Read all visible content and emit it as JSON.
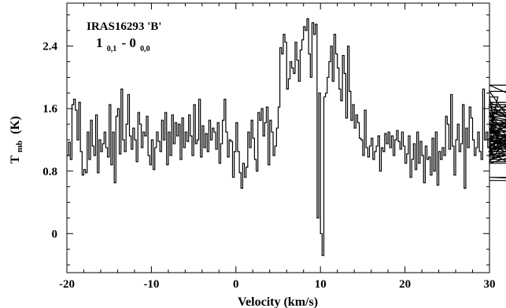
{
  "chart_data": {
    "type": "line",
    "step": true,
    "title": "",
    "annotations": {
      "source": "IRAS16293 'B'",
      "transition_upper": "1",
      "transition_upper_sub": "0,1",
      "transition_sep": "- 0",
      "transition_lower_sub": "0,0"
    },
    "xlabel": "Velocity (km/s)",
    "ylabel_main": "T",
    "ylabel_sub": "mb",
    "ylabel_unit": "(K)",
    "xlim": [
      -20,
      30
    ],
    "ylim": [
      -0.5,
      2.95
    ],
    "xticks": [
      -20,
      -10,
      0,
      10,
      20,
      30
    ],
    "xtick_labels": [
      "-20",
      "-10",
      "0",
      "10",
      "20",
      "30"
    ],
    "yticks": [
      0,
      0.8,
      1.6,
      2.4
    ],
    "ytick_labels": [
      "0",
      "0.8",
      "1.6",
      "2.4"
    ],
    "grid": false,
    "x_start": -20,
    "x_step": 0.2,
    "values": [
      1.0,
      1.17,
      0.95,
      1.65,
      1.72,
      1.58,
      1.2,
      1.68,
      1.05,
      0.75,
      0.82,
      0.78,
      1.3,
      0.95,
      1.45,
      1.12,
      1.0,
      1.52,
      0.78,
      1.2,
      1.05,
      1.15,
      1.3,
      1.1,
      0.98,
      1.65,
      0.88,
      1.3,
      0.65,
      1.5,
      1.6,
      1.02,
      1.85,
      1.2,
      1.05,
      1.4,
      1.78,
      1.25,
      1.08,
      1.35,
      1.2,
      0.92,
      1.55,
      1.4,
      1.1,
      1.3,
      1.25,
      1.5,
      1.0,
      0.88,
      1.2,
      0.82,
      1.1,
      1.3,
      1.18,
      1.05,
      1.45,
      1.2,
      1.55,
      0.88,
      1.3,
      1.0,
      1.52,
      1.15,
      1.42,
      1.25,
      1.4,
      0.95,
      1.48,
      1.1,
      1.3,
      1.18,
      1.52,
      1.25,
      1.0,
      1.65,
      1.15,
      1.2,
      1.72,
      0.98,
      1.38,
      1.1,
      1.28,
      1.05,
      1.45,
      1.2,
      1.35,
      1.3,
      1.08,
      1.42,
      0.9,
      1.15,
      1.45,
      1.72,
      1.3,
      0.98,
      1.2,
      1.18,
      0.72,
      1.05,
      1.42,
      1.05,
      0.78,
      0.58,
      0.9,
      0.72,
      0.85,
      1.3,
      1.1,
      1.45,
      1.22,
      0.95,
      0.8,
      1.55,
      1.45,
      1.6,
      1.25,
      1.42,
      1.62,
      0.88,
      1.45,
      1.3,
      1.0,
      1.12,
      1.35,
      1.62,
      2.38,
      2.3,
      2.55,
      2.45,
      1.85,
      1.98,
      2.2,
      2.12,
      2.05,
      2.45,
      2.22,
      1.95,
      2.35,
      2.48,
      2.65,
      2.6,
      2.75,
      2.3,
      2.0,
      2.7,
      2.55,
      2.68,
      0.2,
      1.8,
      0.0,
      -0.28,
      1.75,
      1.8,
      2.0,
      2.2,
      2.4,
      1.95,
      2.55,
      2.3,
      2.12,
      1.85,
      1.7,
      2.28,
      2.05,
      1.48,
      2.4,
      1.82,
      1.45,
      1.65,
      1.35,
      1.52,
      1.42,
      1.22,
      1.2,
      1.0,
      1.58,
      1.1,
      0.98,
      1.12,
      1.22,
      0.95,
      1.05,
      1.12,
      1.25,
      0.8,
      1.1,
      1.05,
      1.28,
      1.15,
      1.3,
      1.1,
      1.25,
      1.0,
      1.2,
      1.32,
      1.18,
      1.08,
      1.3,
      1.12,
      0.9,
      1.02,
      1.25,
      0.72,
      0.95,
      1.15,
      0.82,
      1.3,
      0.9,
      1.18,
      1.0,
      0.65,
      1.12,
      0.95,
      0.98,
      0.75,
      1.22,
      0.8,
      1.3,
      0.62,
      1.05,
      0.95,
      1.1,
      1.0,
      1.5,
      1.4,
      1.08,
      1.78,
      1.12,
      0.75,
      1.2,
      1.4,
      1.05,
      1.15,
      1.65,
      0.58,
      1.35,
      1.1,
      1.62,
      1.48,
      1.2,
      1.0,
      1.1,
      1.3,
      1.05,
      0.95,
      1.85,
      1.2,
      1.3,
      1.1,
      1.12,
      1.02,
      1.55,
      1.3,
      1.28,
      1.75,
      0.98,
      1.35,
      1.15,
      1.05,
      0.92,
      1.22,
      1.42,
      0.95,
      1.05,
      1.3,
      1.18,
      1.55,
      1.0,
      1.4,
      1.2,
      1.35,
      1.1,
      1.45,
      1.2,
      1.82,
      1.05,
      1.5,
      1.9,
      1.62,
      1.25,
      1.05,
      1.38,
      1.5,
      1.2,
      0.95,
      1.12,
      1.68,
      1.3,
      1.55,
      1.32,
      1.0,
      1.2,
      1.18,
      1.02,
      1.45,
      1.05,
      1.58,
      1.12,
      1.5,
      1.3,
      1.08,
      1.65,
      0.9,
      1.25,
      1.22,
      0.72,
      0.68
    ]
  }
}
